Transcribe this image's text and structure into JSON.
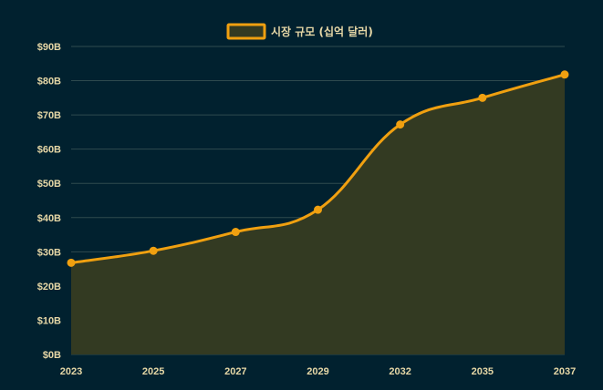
{
  "colors": {
    "background": "#01212f",
    "line": "#f0a010",
    "area_fill": "#333a22",
    "grid": "#2f4a4f",
    "text": "#e6d7a6"
  },
  "chart_data": {
    "type": "area",
    "title": "",
    "xlabel": "",
    "ylabel": "",
    "x": [
      "2023",
      "2025",
      "2027",
      "2029",
      "2032",
      "2035",
      "2037"
    ],
    "series": [
      {
        "name": "시장 규모 (십억 달러)",
        "values": [
          26.8,
          30.3,
          35.8,
          42.3,
          67.2,
          75.0,
          81.8
        ]
      }
    ],
    "ylim": [
      0,
      90
    ],
    "yticks": [
      0,
      10,
      20,
      30,
      40,
      50,
      60,
      70,
      80,
      90
    ],
    "ytick_labels": [
      "$0B",
      "$10B",
      "$20B",
      "$30B",
      "$40B",
      "$50B",
      "$60B",
      "$70B",
      "$80B",
      "$90B"
    ],
    "legend_position": "top-center",
    "grid": true,
    "smooth": true
  }
}
